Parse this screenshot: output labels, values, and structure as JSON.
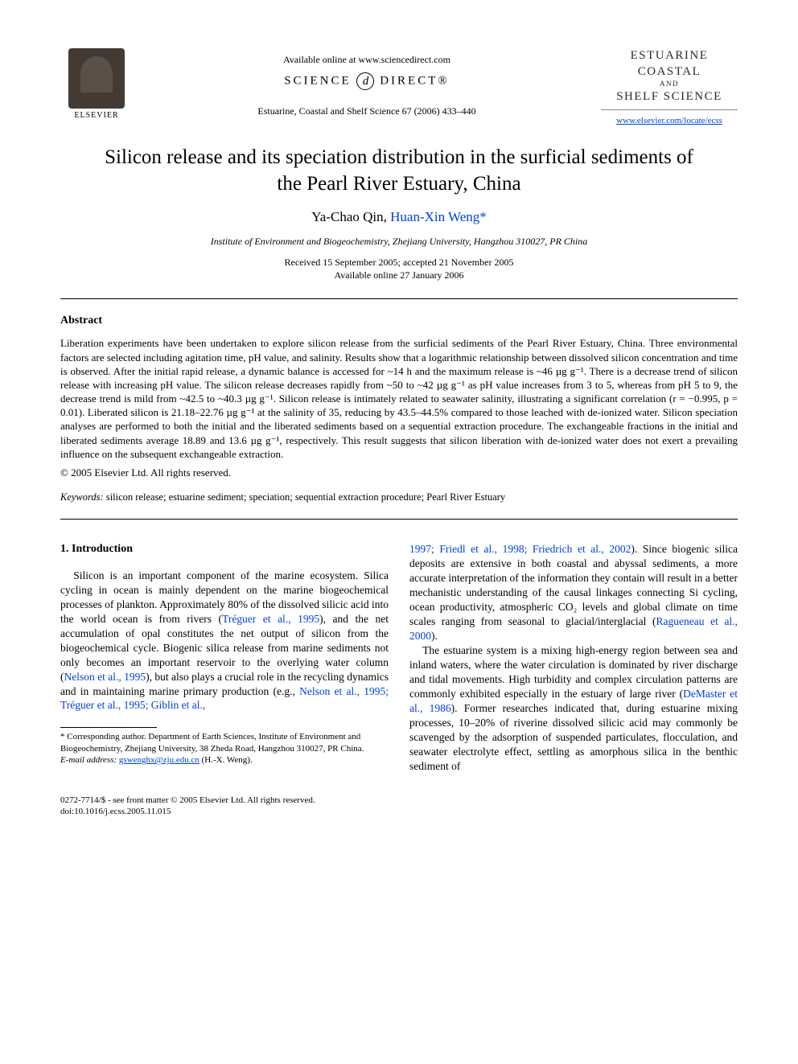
{
  "header": {
    "elsevier_label": "ELSEVIER",
    "available_online": "Available online at www.sciencedirect.com",
    "sd_left": "SCIENCE",
    "sd_d": "d",
    "sd_right": "DIRECT®",
    "journal_ref": "Estuarine, Coastal and Shelf Science 67 (2006) 433–440",
    "journal_name_l1": "ESTUARINE",
    "journal_name_l2": "COASTAL",
    "journal_name_and": "AND",
    "journal_name_l3": "SHELF SCIENCE",
    "journal_link": "www.elsevier.com/locate/ecss"
  },
  "title": "Silicon release and its speciation distribution in the surficial sediments of the Pearl River Estuary, China",
  "authors": {
    "a1": "Ya-Chao Qin",
    "sep": ", ",
    "a2": "Huan-Xin Weng",
    "star": "*"
  },
  "affiliation": "Institute of Environment and Biogeochemistry, Zhejiang University, Hangzhou 310027, PR China",
  "dates": {
    "received": "Received 15 September 2005; accepted 21 November 2005",
    "online": "Available online 27 January 2006"
  },
  "abstract": {
    "heading": "Abstract",
    "body": "Liberation experiments have been undertaken to explore silicon release from the surficial sediments of the Pearl River Estuary, China. Three environmental factors are selected including agitation time, pH value, and salinity. Results show that a logarithmic relationship between dissolved silicon concentration and time is observed. After the initial rapid release, a dynamic balance is accessed for ~14 h and the maximum release is ~46 µg g⁻¹. There is a decrease trend of silicon release with increasing pH value. The silicon release decreases rapidly from ~50 to ~42 µg g⁻¹ as pH value increases from 3 to 5, whereas from pH 5 to 9, the decrease trend is mild from ~42.5 to ~40.3 µg g⁻¹. Silicon release is intimately related to seawater salinity, illustrating a significant correlation (r = −0.995, p = 0.01). Liberated silicon is 21.18–22.76 µg g⁻¹ at the salinity of 35, reducing by 43.5–44.5% compared to those leached with de-ionized water. Silicon speciation analyses are performed to both the initial and the liberated sediments based on a sequential extraction procedure. The exchangeable fractions in the initial and liberated sediments average 18.89 and 13.6 µg g⁻¹, respectively. This result suggests that silicon liberation with de-ionized water does not exert a prevailing influence on the subsequent exchangeable extraction.",
    "copyright": "© 2005 Elsevier Ltd. All rights reserved."
  },
  "keywords": {
    "label": "Keywords:",
    "value": " silicon release; estuarine sediment; speciation; sequential extraction procedure; Pearl River Estuary"
  },
  "intro": {
    "heading": "1. Introduction",
    "col1_pre": "Silicon is an important component of the marine ecosystem. Silica cycling in ocean is mainly dependent on the marine biogeochemical processes of plankton. Approximately 80% of the dissolved silicic acid into the world ocean is from rivers (",
    "cite1": "Tréguer et al., 1995",
    "col1_mid1": "), and the net accumulation of opal constitutes the net output of silicon from the biogeochemical cycle. Biogenic silica release from marine sediments not only becomes an important reservoir to the overlying water column (",
    "cite2": "Nelson et al., 1995",
    "col1_mid2": "), but also plays a crucial role in the recycling dynamics and in maintaining marine primary production (e.g., ",
    "cite3": "Nelson et al., 1995; Tréguer et al., 1995; Giblin et al.,",
    "col2_cite_cont": "1997; Friedl et al., 1998; Friedrich et al., 2002",
    "col2_a": "). Since biogenic silica deposits are extensive in both coastal and abyssal sediments, a more accurate interpretation of the information they contain will result in a better mechanistic understanding of the causal linkages connecting Si cycling, ocean productivity, atmospheric CO₂ levels and global climate on time scales ranging from seasonal to glacial/interglacial (",
    "cite4": "Ragueneau et al., 2000",
    "col2_b": ").",
    "col2_p2_a": "The estuarine system is a mixing high-energy region between sea and inland waters, where the water circulation is dominated by river discharge and tidal movements. High turbidity and complex circulation patterns are commonly exhibited especially in the estuary of large river (",
    "cite5": "DeMaster et al., 1986",
    "col2_p2_b": "). Former researches indicated that, during estuarine mixing processes, 10–20% of riverine dissolved silicic acid may commonly be scavenged by the adsorption of suspended particulates, flocculation, and seawater electrolyte effect, settling as amorphous silica in the benthic sediment of"
  },
  "footnote": {
    "corr": "* Corresponding author. Department of Earth Sciences, Institute of Environment and Biogeochemistry, Zhejiang University, 38 Zheda Road, Hangzhou 310027, PR China.",
    "email_label": "E-mail address:",
    "email": "gswenghx@zju.edu.cn",
    "email_suffix": " (H.-X. Weng)."
  },
  "bottom": {
    "line1": "0272-7714/$ - see front matter © 2005 Elsevier Ltd. All rights reserved.",
    "line2": "doi:10.1016/j.ecss.2005.11.015"
  },
  "colors": {
    "link": "#0040dd",
    "text": "#000000",
    "bg": "#ffffff"
  }
}
